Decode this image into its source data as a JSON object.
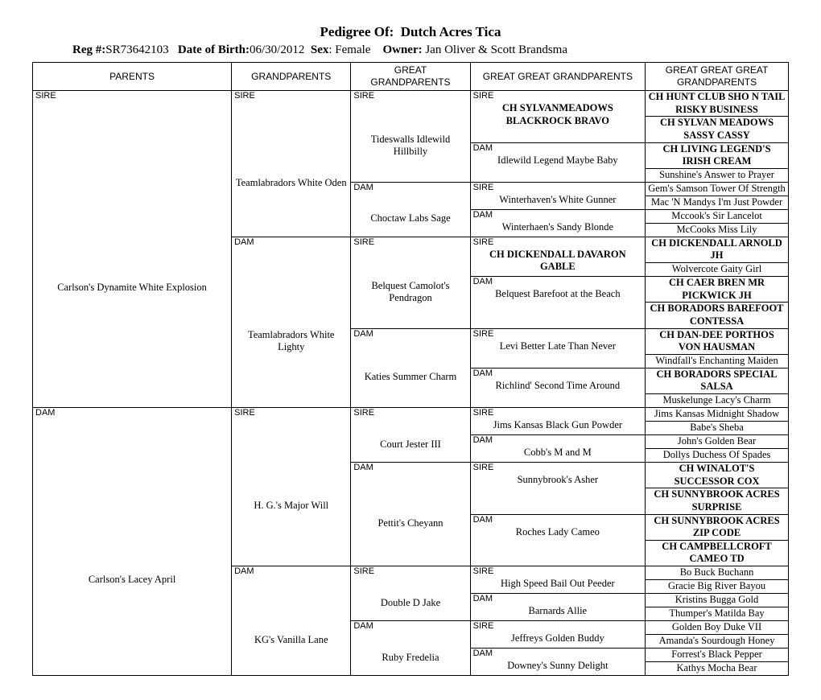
{
  "header": {
    "title_prefix": "Pedigree Of:",
    "dog_name": "Dutch Acres Tica",
    "reg_label": "Reg #:",
    "reg": "SR73642103",
    "dob_label": "Date of Birth:",
    "dob": "06/30/2012",
    "sex_label": "Sex",
    "sex": "Female",
    "owner_label": "Owner:",
    "owner": "Jan Oliver & Scott Brandsma"
  },
  "columns": [
    "PARENTS",
    "GRANDPARENTS",
    "GREAT GRANDPARENTS",
    "GREAT GREAT GRANDPARENTS",
    "GREAT GREAT GREAT GRANDPARENTS"
  ],
  "g1": [
    {
      "tag": "SIRE",
      "name": "Carlson's Dynamite White Explosion"
    },
    {
      "tag": "DAM",
      "name": "Carlson's Lacey April"
    }
  ],
  "g2": [
    {
      "tag": "SIRE",
      "name": "Teamlabradors White Oden"
    },
    {
      "tag": "DAM",
      "name": "Teamlabradors White Lighty"
    },
    {
      "tag": "SIRE",
      "name": "H. G.'s Major Will"
    },
    {
      "tag": "DAM",
      "name": "KG's Vanilla Lane"
    }
  ],
  "g3": [
    {
      "tag": "SIRE",
      "name": "Tideswalls Idlewild Hillbilly"
    },
    {
      "tag": "DAM",
      "name": "Choctaw Labs Sage"
    },
    {
      "tag": "SIRE",
      "name": "Belquest Camolot's Pendragon"
    },
    {
      "tag": "DAM",
      "name": "Katies Summer Charm"
    },
    {
      "tag": "SIRE",
      "name": "Court Jester III"
    },
    {
      "tag": "DAM",
      "name": "Pettit's Cheyann"
    },
    {
      "tag": "SIRE",
      "name": "Double D Jake"
    },
    {
      "tag": "DAM",
      "name": "Ruby Fredelia"
    }
  ],
  "g4": [
    {
      "tag": "SIRE",
      "name": "CH SYLVANMEADOWS BLACKROCK BRAVO",
      "bold": true
    },
    {
      "tag": "DAM",
      "name": "Idlewild Legend Maybe Baby"
    },
    {
      "tag": "SIRE",
      "name": "Winterhaven's White Gunner"
    },
    {
      "tag": "DAM",
      "name": "Winterhaen's Sandy Blonde"
    },
    {
      "tag": "SIRE",
      "name": "CH DICKENDALL DAVARON GABLE",
      "bold": true
    },
    {
      "tag": "DAM",
      "name": "Belquest Barefoot at the Beach"
    },
    {
      "tag": "SIRE",
      "name": "Levi Better Late Than Never"
    },
    {
      "tag": "DAM",
      "name": "Richlind' Second Time Around"
    },
    {
      "tag": "SIRE",
      "name": "Jims Kansas Black Gun Powder"
    },
    {
      "tag": "DAM",
      "name": "Cobb's M and M"
    },
    {
      "tag": "SIRE",
      "name": "Sunnybrook's Asher"
    },
    {
      "tag": "DAM",
      "name": "Roches Lady Cameo"
    },
    {
      "tag": "SIRE",
      "name": "High Speed Bail Out Peeder"
    },
    {
      "tag": "DAM",
      "name": "Barnards Allie"
    },
    {
      "tag": "SIRE",
      "name": "Jeffreys Golden Buddy"
    },
    {
      "tag": "DAM",
      "name": "Downey's Sunny Delight"
    }
  ],
  "g5": [
    {
      "name": "CH HUNT CLUB SHO N TAIL RISKY BUSINESS",
      "bold": true
    },
    {
      "name": "CH SYLVAN MEADOWS SASSY CASSY",
      "bold": true
    },
    {
      "name": "CH LIVING LEGEND'S IRISH CREAM",
      "bold": true
    },
    {
      "name": "Sunshine's Answer to Prayer"
    },
    {
      "name": "Gem's Samson Tower Of Strength"
    },
    {
      "name": "Mac 'N Mandys I'm Just Powder"
    },
    {
      "name": "Mccook's Sir Lancelot"
    },
    {
      "name": "McCooks Miss Lily"
    },
    {
      "name": "CH DICKENDALL ARNOLD JH",
      "bold": true
    },
    {
      "name": "Wolvercote Gaity Girl"
    },
    {
      "name": "CH CAER BREN MR PICKWICK JH",
      "bold": true
    },
    {
      "name": "CH BORADORS BAREFOOT CONTESSA",
      "bold": true
    },
    {
      "name": "CH DAN-DEE PORTHOS VON HAUSMAN",
      "bold": true
    },
    {
      "name": "Windfall's Enchanting Maiden"
    },
    {
      "name": "CH BORADORS SPECIAL SALSA",
      "bold": true
    },
    {
      "name": "Muskelunge Lacy's Charm"
    },
    {
      "name": "Jims Kansas Midnight Shadow"
    },
    {
      "name": "Babe's Sheba"
    },
    {
      "name": "John's Golden Bear"
    },
    {
      "name": "Dollys Duchess Of Spades"
    },
    {
      "name": "CH WINALOT'S SUCCESSOR COX",
      "bold": true
    },
    {
      "name": "CH SUNNYBROOK ACRES SURPRISE",
      "bold": true
    },
    {
      "name": "CH SUNNYBROOK ACRES ZIP CODE",
      "bold": true
    },
    {
      "name": "CH CAMPBELLCROFT CAMEO TD",
      "bold": true
    },
    {
      "name": "Bo Buck Buchann"
    },
    {
      "name": "Gracie Big River Bayou"
    },
    {
      "name": "Kristins Bugga Gold"
    },
    {
      "name": "Thumper's Matilda Bay"
    },
    {
      "name": "Golden Boy Duke VII"
    },
    {
      "name": "Amanda's Sourdough Honey"
    },
    {
      "name": "Forrest's Black Pepper"
    },
    {
      "name": "Kathys Mocha Bear"
    }
  ]
}
